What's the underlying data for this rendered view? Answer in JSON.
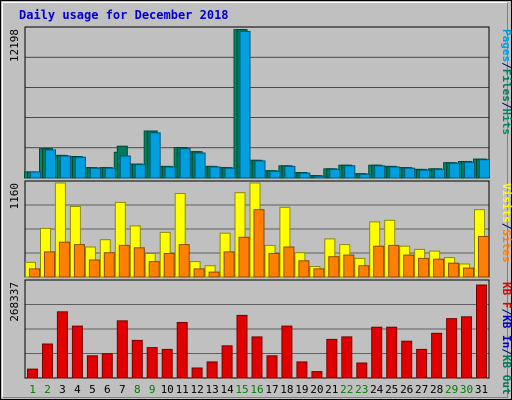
{
  "title": "Daily usage for December 2018",
  "colors": {
    "pages": "#00a0e0",
    "files": "#007a5a",
    "hits": "#008a6a",
    "visits": "#ffff00",
    "sites": "#ff8000",
    "kbytes": "#e00000",
    "kb_in": "#0000cc",
    "kb_out": "#007a5a",
    "weekend_label": "#008000",
    "weekday_label": "#000080",
    "title": "#0000cc",
    "grid": "#000000",
    "plot_bg": "#c0c0c0"
  },
  "chart_data": [
    {
      "type": "bar",
      "panel": "top",
      "ymax_label": "12198",
      "ylim": [
        0,
        12198
      ],
      "right_label_parts": [
        "Pages",
        "/",
        "Files",
        "/",
        "Hits"
      ],
      "grid": true,
      "x": [
        1,
        2,
        3,
        4,
        5,
        6,
        7,
        8,
        9,
        10,
        11,
        12,
        13,
        14,
        15,
        16,
        17,
        18,
        19,
        20,
        21,
        22,
        23,
        24,
        25,
        26,
        27,
        28,
        29,
        30,
        31
      ],
      "series": [
        {
          "name": "Hits",
          "values": [
            500,
            2400,
            1850,
            1750,
            850,
            850,
            2100,
            1150,
            3850,
            950,
            2500,
            2150,
            950,
            850,
            12150,
            1450,
            600,
            1000,
            450,
            200,
            750,
            1050,
            350,
            1050,
            950,
            850,
            700,
            750,
            1250,
            1350,
            1550
          ]
        },
        {
          "name": "Files",
          "values": [
            500,
            2400,
            1850,
            1750,
            850,
            850,
            2600,
            1150,
            3850,
            950,
            2500,
            2150,
            950,
            850,
            12150,
            1450,
            600,
            1000,
            450,
            200,
            750,
            1050,
            350,
            1050,
            950,
            850,
            700,
            750,
            1250,
            1350,
            1550
          ]
        },
        {
          "name": "Pages",
          "values": [
            500,
            2300,
            1800,
            1700,
            800,
            800,
            1800,
            1100,
            3700,
            900,
            2400,
            2050,
            900,
            800,
            12000,
            1400,
            550,
            950,
            400,
            150,
            700,
            1000,
            300,
            1000,
            900,
            800,
            650,
            700,
            1200,
            1300,
            1500
          ]
        }
      ]
    },
    {
      "type": "bar",
      "panel": "middle",
      "ymax_label": "1160",
      "ylim": [
        0,
        1160
      ],
      "right_label_parts": [
        "Visits",
        "/",
        "Sites"
      ],
      "grid": true,
      "x": [
        1,
        2,
        3,
        4,
        5,
        6,
        7,
        8,
        9,
        10,
        11,
        12,
        13,
        14,
        15,
        16,
        17,
        18,
        19,
        20,
        21,
        22,
        23,
        24,
        25,
        26,
        27,
        28,
        29,
        30,
        31
      ],
      "series": [
        {
          "name": "Visits",
          "values": [
            180,
            600,
            1160,
            870,
            370,
            460,
            920,
            630,
            290,
            550,
            1030,
            190,
            140,
            540,
            1040,
            1160,
            390,
            860,
            300,
            130,
            470,
            400,
            230,
            680,
            700,
            380,
            340,
            320,
            240,
            160,
            830
          ]
        },
        {
          "name": "Sites",
          "values": [
            100,
            310,
            430,
            400,
            210,
            300,
            390,
            360,
            190,
            290,
            400,
            100,
            60,
            310,
            490,
            830,
            290,
            370,
            200,
            100,
            250,
            270,
            140,
            380,
            390,
            270,
            230,
            220,
            170,
            110,
            500
          ]
        }
      ]
    },
    {
      "type": "bar",
      "panel": "bottom",
      "ymax_label": "268337",
      "ylim": [
        0,
        268337
      ],
      "right_label_parts": [
        "KB F",
        "/",
        "KB In",
        "/",
        "KB Out"
      ],
      "grid": true,
      "x": [
        1,
        2,
        3,
        4,
        5,
        6,
        7,
        8,
        9,
        10,
        11,
        12,
        13,
        14,
        15,
        16,
        17,
        18,
        19,
        20,
        21,
        22,
        23,
        24,
        25,
        26,
        27,
        28,
        29,
        30,
        31
      ],
      "series": [
        {
          "name": "KBytes",
          "values": [
            25000,
            95000,
            185000,
            145000,
            62000,
            68000,
            160000,
            105000,
            85000,
            80000,
            155000,
            28000,
            45000,
            90000,
            175000,
            115000,
            62000,
            145000,
            45000,
            18000,
            108000,
            115000,
            42000,
            142000,
            142000,
            103000,
            80000,
            125000,
            166000,
            171000,
            260000
          ]
        }
      ],
      "weekend_days": [
        1,
        2,
        8,
        9,
        15,
        16,
        22,
        23,
        29,
        30
      ]
    }
  ]
}
